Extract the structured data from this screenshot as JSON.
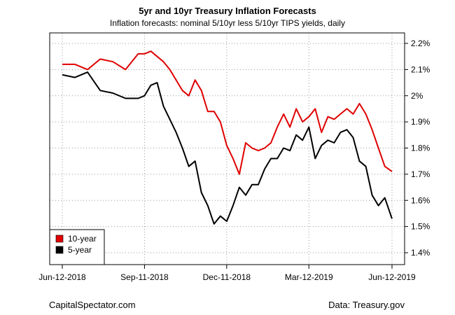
{
  "chart_data": {
    "type": "line",
    "title": "5yr and 10yr Treasury Inflation Forecasts",
    "subtitle": "Inflation forecasts: nominal 5/10yr less 5/10yr TIPS yields, daily",
    "xlabel": "",
    "ylabel": "",
    "x_ticks": [
      "Jun-12-2018",
      "Sep-11-2018",
      "Dec-11-2018",
      "Mar-12-2019",
      "Jun-12-2019"
    ],
    "y_ticks": [
      "1.4%",
      "1.5%",
      "1.6%",
      "1.7%",
      "1.8%",
      "1.9%",
      "2%",
      "2.1%",
      "2.2%"
    ],
    "xlim": [
      "2018-06-12",
      "2019-06-12"
    ],
    "ylim": [
      1.35,
      2.25
    ],
    "grid": true,
    "legend_position": "bottom-left",
    "series": [
      {
        "name": "10-year",
        "color": "#e00000",
        "x": [
          "2018-06-12",
          "2018-06-26",
          "2018-07-10",
          "2018-07-24",
          "2018-08-07",
          "2018-08-21",
          "2018-09-04",
          "2018-09-11",
          "2018-09-18",
          "2018-09-25",
          "2018-10-02",
          "2018-10-09",
          "2018-10-16",
          "2018-10-23",
          "2018-10-30",
          "2018-11-06",
          "2018-11-13",
          "2018-11-20",
          "2018-11-27",
          "2018-12-04",
          "2018-12-11",
          "2018-12-18",
          "2018-12-25",
          "2019-01-01",
          "2019-01-08",
          "2019-01-15",
          "2019-01-22",
          "2019-01-29",
          "2019-02-05",
          "2019-02-12",
          "2019-02-19",
          "2019-02-26",
          "2019-03-05",
          "2019-03-12",
          "2019-03-19",
          "2019-03-26",
          "2019-04-02",
          "2019-04-09",
          "2019-04-16",
          "2019-04-23",
          "2019-04-30",
          "2019-05-07",
          "2019-05-14",
          "2019-05-21",
          "2019-05-28",
          "2019-06-04",
          "2019-06-12"
        ],
        "y": [
          2.12,
          2.12,
          2.1,
          2.14,
          2.13,
          2.1,
          2.16,
          2.16,
          2.17,
          2.15,
          2.13,
          2.1,
          2.06,
          2.02,
          2.0,
          2.06,
          2.02,
          1.94,
          1.94,
          1.9,
          1.81,
          1.76,
          1.7,
          1.82,
          1.8,
          1.79,
          1.8,
          1.82,
          1.88,
          1.93,
          1.88,
          1.95,
          1.9,
          1.92,
          1.95,
          1.86,
          1.92,
          1.91,
          1.93,
          1.95,
          1.93,
          1.97,
          1.93,
          1.87,
          1.8,
          1.73,
          1.71
        ]
      },
      {
        "name": "5-year",
        "color": "#000000",
        "x": [
          "2018-06-12",
          "2018-06-26",
          "2018-07-10",
          "2018-07-24",
          "2018-08-07",
          "2018-08-21",
          "2018-09-04",
          "2018-09-11",
          "2018-09-18",
          "2018-09-25",
          "2018-10-02",
          "2018-10-09",
          "2018-10-16",
          "2018-10-23",
          "2018-10-30",
          "2018-11-06",
          "2018-11-13",
          "2018-11-20",
          "2018-11-27",
          "2018-12-04",
          "2018-12-11",
          "2018-12-18",
          "2018-12-25",
          "2019-01-01",
          "2019-01-08",
          "2019-01-15",
          "2019-01-22",
          "2019-01-29",
          "2019-02-05",
          "2019-02-12",
          "2019-02-19",
          "2019-02-26",
          "2019-03-05",
          "2019-03-12",
          "2019-03-19",
          "2019-03-26",
          "2019-04-02",
          "2019-04-09",
          "2019-04-16",
          "2019-04-23",
          "2019-04-30",
          "2019-05-07",
          "2019-05-14",
          "2019-05-21",
          "2019-05-28",
          "2019-06-04",
          "2019-06-12"
        ],
        "y": [
          2.08,
          2.07,
          2.09,
          2.02,
          2.01,
          1.99,
          1.99,
          2.0,
          2.04,
          2.05,
          1.96,
          1.91,
          1.86,
          1.8,
          1.73,
          1.75,
          1.63,
          1.58,
          1.51,
          1.54,
          1.52,
          1.58,
          1.65,
          1.62,
          1.66,
          1.66,
          1.72,
          1.76,
          1.76,
          1.8,
          1.79,
          1.85,
          1.83,
          1.88,
          1.76,
          1.81,
          1.83,
          1.82,
          1.86,
          1.87,
          1.84,
          1.75,
          1.73,
          1.62,
          1.58,
          1.61,
          1.53
        ]
      }
    ]
  },
  "footer": {
    "left": "CapitalSpectator.com",
    "right": "Data: Treasury.gov"
  }
}
